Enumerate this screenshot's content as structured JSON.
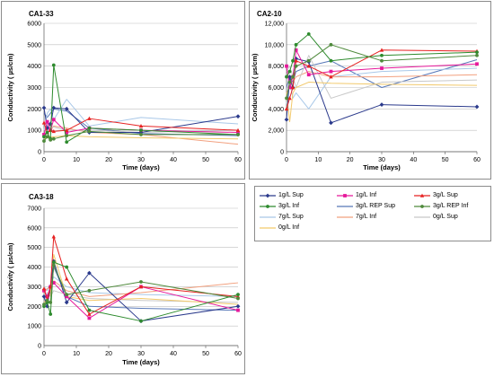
{
  "series_styles": [
    {
      "name": "1g/L Sup",
      "color": "#2b3a8c",
      "marker": "diamond"
    },
    {
      "name": "1g/L Inf",
      "color": "#e6189b",
      "marker": "square"
    },
    {
      "name": "3g/L Sup",
      "color": "#e62222",
      "marker": "triangle"
    },
    {
      "name": "3g/L Inf",
      "color": "#2e8b2e",
      "marker": "circle"
    },
    {
      "name": "3g/L REP Sup",
      "color": "#5878b8",
      "marker": "none"
    },
    {
      "name": "3g/L REP Inf",
      "color": "#4f8a3c",
      "marker": "circle"
    },
    {
      "name": "7g/L Sup",
      "color": "#a9c8e8",
      "marker": "none"
    },
    {
      "name": "7g/L Inf",
      "color": "#f2a07e",
      "marker": "none"
    },
    {
      "name": "0g/L Sup",
      "color": "#c8c8c8",
      "marker": "none"
    },
    {
      "name": "0g/L Inf",
      "color": "#f2c96b",
      "marker": "none"
    }
  ],
  "chart_data": [
    {
      "type": "line",
      "title": "CA1-33",
      "xlabel": "Time (days)",
      "ylabel": "Conductivity ( µs/cm)",
      "xlim": [
        0,
        60
      ],
      "ylim": [
        0,
        6000
      ],
      "xticks": [
        0,
        10,
        20,
        30,
        40,
        50,
        60
      ],
      "yticks": [
        0,
        1000,
        2000,
        3000,
        4000,
        5000,
        6000
      ],
      "ytick_labels": [
        "0",
        "1000",
        "2000",
        "3000",
        "4000",
        "5000",
        "6000"
      ],
      "series": [
        {
          "name": "1g/L Sup",
          "x": [
            0,
            1,
            2,
            3,
            7,
            14,
            30,
            60
          ],
          "y": [
            2050,
            1100,
            1300,
            2050,
            2000,
            900,
            900,
            1650
          ]
        },
        {
          "name": "1g/L Inf",
          "x": [
            0,
            1,
            2,
            3,
            7,
            14,
            30,
            60
          ],
          "y": [
            800,
            1400,
            1000,
            1500,
            900,
            1100,
            1000,
            900
          ]
        },
        {
          "name": "3g/L Sup",
          "x": [
            0,
            1,
            2,
            3,
            7,
            14,
            30,
            60
          ],
          "y": [
            1350,
            900,
            1000,
            950,
            1000,
            1550,
            1200,
            1000
          ]
        },
        {
          "name": "3g/L Inf",
          "x": [
            0,
            1,
            2,
            3,
            7,
            14,
            30,
            60
          ],
          "y": [
            700,
            900,
            600,
            4050,
            450,
            1100,
            1000,
            800
          ]
        },
        {
          "name": "3g/L REP Sup",
          "x": [
            0,
            1,
            2,
            3,
            7,
            14,
            30,
            60
          ],
          "y": [
            1800,
            1600,
            1800,
            2000,
            1900,
            1100,
            850,
            750
          ]
        },
        {
          "name": "3g/L REP Inf",
          "x": [
            0,
            1,
            2,
            3,
            7,
            14,
            30,
            60
          ],
          "y": [
            500,
            700,
            550,
            600,
            750,
            950,
            800,
            800
          ]
        },
        {
          "name": "7g/L Sup",
          "x": [
            0,
            1,
            2,
            3,
            7,
            14,
            30,
            60
          ],
          "y": [
            1000,
            1800,
            2000,
            1500,
            2450,
            1200,
            1600,
            1300
          ]
        },
        {
          "name": "7g/L Inf",
          "x": [
            0,
            1,
            2,
            3,
            7,
            14,
            30,
            60
          ],
          "y": [
            900,
            1100,
            1000,
            1200,
            1100,
            900,
            800,
            350
          ]
        },
        {
          "name": "0g/L Sup",
          "x": [
            0,
            1,
            2,
            3,
            7,
            14,
            30,
            60
          ],
          "y": [
            1100,
            1000,
            1200,
            1150,
            1000,
            1000,
            900,
            1000
          ]
        },
        {
          "name": "0g/L Inf",
          "x": [
            0,
            1,
            2,
            3,
            7,
            14,
            30,
            60
          ],
          "y": [
            600,
            650,
            700,
            700,
            750,
            700,
            650,
            600
          ]
        }
      ]
    },
    {
      "type": "line",
      "title": "CA2-10",
      "xlabel": "Time (days)",
      "ylabel": "Conductivity ( µs/cm)",
      "xlim": [
        0,
        60
      ],
      "ylim": [
        0,
        12000
      ],
      "xticks": [
        0,
        10,
        20,
        30,
        40,
        50,
        60
      ],
      "yticks": [
        0,
        2000,
        4000,
        6000,
        8000,
        10000,
        12000
      ],
      "ytick_labels": [
        "0",
        "2,000",
        "4,000",
        "6,000",
        "8,000",
        "10,000",
        "12,000"
      ],
      "series": [
        {
          "name": "1g/L Sup",
          "x": [
            0,
            1,
            2,
            3,
            7,
            14,
            30,
            60
          ],
          "y": [
            3000,
            7000,
            6000,
            8700,
            8400,
            2700,
            4400,
            4200
          ]
        },
        {
          "name": "1g/L Inf",
          "x": [
            0,
            1,
            2,
            3,
            7,
            14,
            30,
            60
          ],
          "y": [
            8000,
            6000,
            7000,
            9500,
            7200,
            7500,
            7800,
            8200
          ]
        },
        {
          "name": "3g/L Sup",
          "x": [
            0,
            1,
            2,
            3,
            7,
            14,
            30,
            60
          ],
          "y": [
            4000,
            5000,
            6000,
            8500,
            8000,
            7000,
            9500,
            9400
          ]
        },
        {
          "name": "3g/L Inf",
          "x": [
            0,
            1,
            2,
            3,
            7,
            14,
            30,
            60
          ],
          "y": [
            7000,
            7500,
            8500,
            10000,
            11000,
            8500,
            9000,
            9300
          ]
        },
        {
          "name": "3g/L REP Sup",
          "x": [
            0,
            1,
            2,
            3,
            7,
            14,
            30,
            60
          ],
          "y": [
            6000,
            7000,
            6500,
            7500,
            8000,
            8500,
            6000,
            8600
          ]
        },
        {
          "name": "3g/L REP Inf",
          "x": [
            0,
            1,
            2,
            3,
            7,
            14,
            30,
            60
          ],
          "y": [
            5000,
            6500,
            7000,
            8000,
            8500,
            10000,
            8500,
            9000
          ]
        },
        {
          "name": "7g/L Sup",
          "x": [
            0,
            1,
            2,
            3,
            7,
            14,
            30,
            60
          ],
          "y": [
            4500,
            6500,
            5000,
            5500,
            4000,
            7000,
            7500,
            7800
          ]
        },
        {
          "name": "7g/L Inf",
          "x": [
            0,
            1,
            2,
            3,
            7,
            14,
            30,
            60
          ],
          "y": [
            5500,
            6000,
            6500,
            7000,
            7500,
            7000,
            7000,
            7200
          ]
        },
        {
          "name": "0g/L Sup",
          "x": [
            0,
            1,
            2,
            3,
            7,
            14,
            30,
            60
          ],
          "y": [
            7500,
            8000,
            7000,
            6000,
            9000,
            5000,
            6500,
            6700
          ]
        },
        {
          "name": "0g/L Inf",
          "x": [
            0,
            1,
            2,
            3,
            7,
            14,
            30,
            60
          ],
          "y": [
            5500,
            2800,
            5500,
            6000,
            6500,
            6400,
            6300,
            6200
          ]
        }
      ]
    },
    {
      "type": "line",
      "title": "CA3-18",
      "xlabel": "Time (days)",
      "ylabel": "Conductivity ( µs/cm)",
      "xlim": [
        0,
        60
      ],
      "ylim": [
        0,
        7000
      ],
      "xticks": [
        0,
        10,
        20,
        30,
        40,
        50,
        60
      ],
      "yticks": [
        0,
        1000,
        2000,
        3000,
        4000,
        5000,
        6000,
        7000
      ],
      "ytick_labels": [
        "0",
        "1000",
        "2000",
        "3000",
        "4000",
        "5000",
        "6000",
        "7000"
      ],
      "series": [
        {
          "name": "1g/L Sup",
          "x": [
            0,
            1,
            2,
            3,
            7,
            14,
            30,
            60
          ],
          "y": [
            2500,
            2000,
            3000,
            4300,
            2200,
            3700,
            1250,
            2000
          ]
        },
        {
          "name": "1g/L Inf",
          "x": [
            0,
            1,
            2,
            3,
            7,
            14,
            30,
            60
          ],
          "y": [
            2800,
            2500,
            3000,
            3200,
            2500,
            1400,
            3000,
            1800
          ]
        },
        {
          "name": "3g/L Sup",
          "x": [
            0,
            1,
            2,
            3,
            7,
            14,
            30,
            60
          ],
          "y": [
            2900,
            2300,
            3000,
            5550,
            3400,
            1600,
            3000,
            2500
          ]
        },
        {
          "name": "3g/L Inf",
          "x": [
            0,
            1,
            2,
            3,
            7,
            14,
            30,
            60
          ],
          "y": [
            2000,
            2200,
            1600,
            4250,
            4000,
            1800,
            1250,
            2600
          ]
        },
        {
          "name": "3g/L REP Sup",
          "x": [
            0,
            1,
            2,
            3,
            7,
            14,
            30,
            60
          ],
          "y": [
            2400,
            2600,
            2700,
            4000,
            2500,
            2000,
            1900,
            1800
          ]
        },
        {
          "name": "3g/L REP Inf",
          "x": [
            0,
            1,
            2,
            3,
            7,
            14,
            30,
            60
          ],
          "y": [
            2100,
            2300,
            2200,
            4100,
            2600,
            2800,
            3250,
            2400
          ]
        },
        {
          "name": "7g/L Sup",
          "x": [
            0,
            1,
            2,
            3,
            7,
            14,
            30,
            60
          ],
          "y": [
            3000,
            2800,
            3100,
            3500,
            3000,
            2700,
            2600,
            2500
          ]
        },
        {
          "name": "7g/L Inf",
          "x": [
            0,
            1,
            2,
            3,
            7,
            14,
            30,
            60
          ],
          "y": [
            2700,
            2900,
            3000,
            3300,
            2800,
            2500,
            2700,
            3200
          ]
        },
        {
          "name": "0g/L Sup",
          "x": [
            0,
            1,
            2,
            3,
            7,
            14,
            30,
            60
          ],
          "y": [
            2600,
            2700,
            2500,
            2800,
            2600,
            2400,
            2300,
            2200
          ]
        },
        {
          "name": "0g/L Inf",
          "x": [
            0,
            1,
            2,
            3,
            7,
            14,
            30,
            60
          ],
          "y": [
            2200,
            2400,
            2600,
            4650,
            2500,
            2300,
            2400,
            2100
          ]
        }
      ]
    }
  ]
}
